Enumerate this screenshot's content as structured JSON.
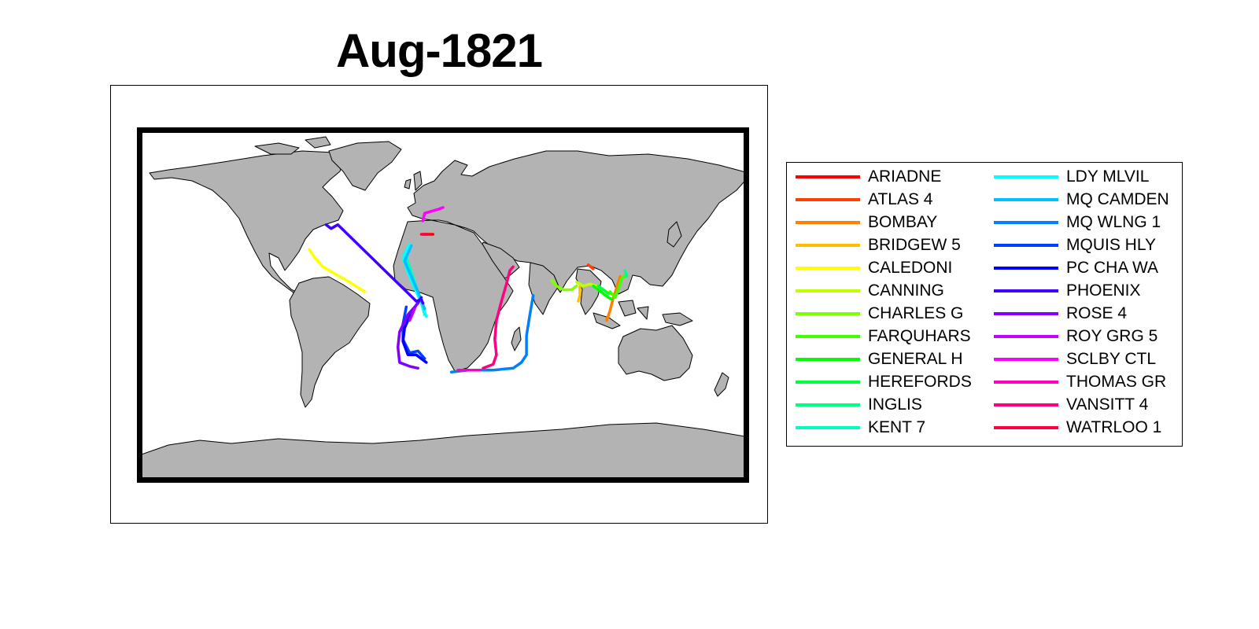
{
  "title": "Aug-1821",
  "map": {
    "projection": "equirectangular",
    "land_color": "#b3b3b3",
    "ocean_color": "#ffffff",
    "frame_color": "#000000"
  },
  "legend": {
    "placement": "right",
    "columns": 2,
    "items": [
      {
        "label": "ARIADNE",
        "color": "#ff0000"
      },
      {
        "label": "ATLAS 4",
        "color": "#ff4000"
      },
      {
        "label": "BOMBAY",
        "color": "#ff8000"
      },
      {
        "label": "BRIDGEW 5",
        "color": "#ffbf00"
      },
      {
        "label": "CALEDONI",
        "color": "#ffff00"
      },
      {
        "label": "CANNING",
        "color": "#bfff00"
      },
      {
        "label": "CHARLES G",
        "color": "#80ff00"
      },
      {
        "label": "FARQUHARS",
        "color": "#40ff00"
      },
      {
        "label": "GENERAL H",
        "color": "#00ff00"
      },
      {
        "label": "HEREFORDS",
        "color": "#00ff40"
      },
      {
        "label": "INGLIS",
        "color": "#00ff80"
      },
      {
        "label": "KENT 7",
        "color": "#00ffbf"
      },
      {
        "label": "LDY MLVIL",
        "color": "#00ffff"
      },
      {
        "label": "MQ CAMDEN",
        "color": "#00bfff"
      },
      {
        "label": "MQ WLNG 1",
        "color": "#0080ff"
      },
      {
        "label": "MQUIS HLY",
        "color": "#0040ff"
      },
      {
        "label": "PC CHA WA",
        "color": "#0000ff"
      },
      {
        "label": "PHOENIX",
        "color": "#4000ff"
      },
      {
        "label": "ROSE 4",
        "color": "#8000ff"
      },
      {
        "label": "ROY GRG 5",
        "color": "#bf00ff"
      },
      {
        "label": "SCLBY CTL",
        "color": "#ff00ff"
      },
      {
        "label": "THOMAS GR",
        "color": "#ff00bf"
      },
      {
        "label": "VANSITT 4",
        "color": "#ff0080"
      },
      {
        "label": "WATRLOO 1",
        "color": "#ff0040"
      }
    ]
  },
  "tracks": [
    {
      "ship": "ARIADNE",
      "color": "#ff0000",
      "coords": [
        [
          -12,
          37
        ],
        [
          -6,
          37
        ]
      ]
    },
    {
      "ship": "ATLAS 4",
      "color": "#ff4000",
      "coords": [
        [
          87,
          21
        ],
        [
          90,
          19
        ]
      ]
    },
    {
      "ship": "BOMBAY",
      "color": "#ff8000",
      "coords": [
        [
          98,
          -8
        ],
        [
          100,
          -3
        ],
        [
          102,
          4
        ],
        [
          104,
          9
        ],
        [
          106,
          15
        ]
      ]
    },
    {
      "ship": "BRIDGEW 5",
      "color": "#ffbf00",
      "coords": [
        [
          82,
          10
        ],
        [
          82,
          5
        ],
        [
          81,
          2
        ]
      ]
    },
    {
      "ship": "CALEDONI",
      "color": "#ffff00",
      "coords": [
        [
          -80,
          29
        ],
        [
          -77,
          25
        ],
        [
          -72,
          20
        ],
        [
          -64,
          16
        ],
        [
          -56,
          12
        ],
        [
          -47,
          7
        ]
      ]
    },
    {
      "ship": "CANNING",
      "color": "#bfff00",
      "coords": [
        [
          80,
          12
        ],
        [
          84,
          10
        ],
        [
          88,
          11
        ],
        [
          92,
          10
        ],
        [
          96,
          8
        ],
        [
          100,
          6
        ]
      ]
    },
    {
      "ship": "CHARLES G",
      "color": "#80ff00",
      "coords": [
        [
          65,
          13
        ],
        [
          68,
          10
        ],
        [
          72,
          8
        ],
        [
          77,
          8
        ],
        [
          80,
          10
        ]
      ]
    },
    {
      "ship": "FARQUHARS",
      "color": "#40ff00",
      "coords": [
        [
          100,
          7
        ],
        [
          103,
          4
        ],
        [
          105,
          8
        ],
        [
          107,
          14
        ],
        [
          110,
          16
        ]
      ]
    },
    {
      "ship": "GENERAL H",
      "color": "#00ff00",
      "coords": [
        [
          90,
          10
        ],
        [
          93,
          8
        ],
        [
          96,
          6
        ],
        [
          99,
          4
        ],
        [
          101,
          3
        ]
      ]
    },
    {
      "ship": "HEREFORDS",
      "color": "#00ff40",
      "coords": [
        [
          93,
          10
        ],
        [
          96,
          8
        ],
        [
          99,
          6
        ]
      ]
    },
    {
      "ship": "INGLIS",
      "color": "#00ff80",
      "coords": [
        [
          109,
          18
        ],
        [
          110,
          15
        ]
      ]
    },
    {
      "ship": "KENT 7",
      "color": "#00ffbf",
      "coords": [
        [
          -23,
          27
        ],
        [
          -20,
          20
        ],
        [
          -17,
          12
        ],
        [
          -14,
          4
        ],
        [
          -11,
          -5
        ]
      ]
    },
    {
      "ship": "LDY MLVIL",
      "color": "#00ffff",
      "coords": [
        [
          -20,
          32
        ],
        [
          -24,
          25
        ],
        [
          -21,
          17
        ],
        [
          -17,
          9
        ],
        [
          -13,
          1
        ],
        [
          -10,
          -6
        ]
      ]
    },
    {
      "ship": "MQ CAMDEN",
      "color": "#00bfff",
      "coords": [
        [
          -19,
          31
        ],
        [
          -23,
          23
        ],
        [
          -19,
          15
        ],
        [
          -15,
          7
        ],
        [
          -11,
          -2
        ]
      ]
    },
    {
      "ship": "MQ WLNG 1",
      "color": "#0080ff",
      "coords": [
        [
          5,
          -35
        ],
        [
          15,
          -34
        ],
        [
          30,
          -34
        ],
        [
          42,
          -33
        ],
        [
          47,
          -30
        ],
        [
          50,
          -26
        ],
        [
          50,
          -16
        ],
        [
          52,
          -5
        ],
        [
          54,
          5
        ]
      ]
    },
    {
      "ship": "MQUIS HLY",
      "color": "#0040ff",
      "coords": [
        [
          -22,
          -1
        ],
        [
          -24,
          -10
        ],
        [
          -24,
          -18
        ],
        [
          -20,
          -25
        ],
        [
          -15,
          -24
        ],
        [
          -11,
          -28
        ]
      ]
    },
    {
      "ship": "PC CHA WA",
      "color": "#0000ff",
      "coords": [
        [
          -13,
          4
        ],
        [
          -19,
          -4
        ],
        [
          -23,
          -12
        ],
        [
          -24,
          -19
        ],
        [
          -21,
          -26
        ],
        [
          -16,
          -26
        ],
        [
          -10,
          -30
        ]
      ]
    },
    {
      "ship": "PHOENIX",
      "color": "#4000ff",
      "coords": [
        [
          -70,
          42
        ],
        [
          -67,
          40
        ],
        [
          -63,
          42
        ],
        [
          -16,
          2
        ],
        [
          -13,
          3
        ],
        [
          -12,
          1
        ]
      ]
    },
    {
      "ship": "ROSE 4",
      "color": "#8000ff",
      "coords": [
        [
          -15,
          1
        ],
        [
          -21,
          -5
        ],
        [
          -26,
          -14
        ],
        [
          -27,
          -22
        ],
        [
          -26,
          -30
        ],
        [
          -20,
          -32
        ],
        [
          -15,
          -33
        ]
      ]
    },
    {
      "ship": "ROY GRG 5",
      "color": "#bf00ff",
      "coords": [
        [
          -17,
          -2
        ],
        [
          -20,
          -8
        ]
      ]
    },
    {
      "ship": "SCLBY CTL",
      "color": "#ff00ff",
      "coords": [
        [
          -12,
          44
        ],
        [
          -11,
          48
        ],
        [
          -3,
          50
        ],
        [
          0,
          51
        ]
      ]
    },
    {
      "ship": "THOMAS GR",
      "color": "#ff00bf",
      "coords": [
        [
          9,
          -34
        ],
        [
          16,
          -34
        ],
        [
          22,
          -34
        ]
      ]
    },
    {
      "ship": "VANSITT 4",
      "color": "#ff0080",
      "coords": [
        [
          24,
          -33
        ],
        [
          30,
          -31
        ],
        [
          32,
          -26
        ],
        [
          31,
          -18
        ],
        [
          32,
          -8
        ],
        [
          35,
          2
        ],
        [
          38,
          11
        ],
        [
          40,
          18
        ],
        [
          42,
          20
        ]
      ]
    },
    {
      "ship": "WATRLOO 1",
      "color": "#ff0040",
      "coords": [
        [
          -13,
          37
        ],
        [
          -9,
          37
        ]
      ]
    }
  ]
}
